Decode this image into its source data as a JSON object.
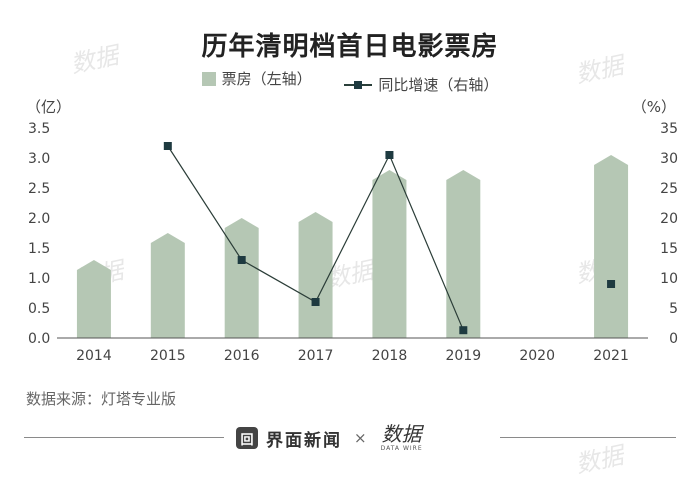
{
  "title": "历年清明档首日电影票房",
  "legend": {
    "bar_label": "票房（左轴）",
    "line_label": "同比增速（右轴）"
  },
  "axis": {
    "left_unit": "（亿）",
    "right_unit": "（%）"
  },
  "source": "数据来源：灯塔专业版",
  "footer": {
    "brand_mark": "回",
    "brand_name": "界面新闻",
    "cross": "×",
    "partner_cn": "数据",
    "partner_en": "DATA WIRE"
  },
  "watermark": "数据",
  "colors": {
    "bar": "#b5c7b4",
    "line": "#2b3d38",
    "marker": "#1e3a40",
    "axis": "#555555"
  },
  "chart_data": {
    "type": "bar",
    "categories": [
      "2014",
      "2015",
      "2016",
      "2017",
      "2018",
      "2019",
      "2020",
      "2021"
    ],
    "series": [
      {
        "name": "票房（左轴）",
        "type": "bar",
        "axis": "left",
        "values": [
          1.3,
          1.75,
          2.0,
          2.1,
          2.8,
          2.8,
          null,
          3.05
        ]
      },
      {
        "name": "同比增速（右轴）",
        "type": "line",
        "axis": "right",
        "values": [
          null,
          32,
          13,
          6,
          30.5,
          1.3,
          null,
          9
        ]
      }
    ],
    "left_axis": {
      "min": 0,
      "max": 3.5,
      "ticks": [
        "0.0",
        "0.5",
        "1.0",
        "1.5",
        "2.0",
        "2.5",
        "3.0",
        "3.5"
      ]
    },
    "right_axis": {
      "min": 0,
      "max": 35,
      "ticks": [
        "0",
        "5",
        "10",
        "15",
        "20",
        "25",
        "30",
        "35"
      ]
    },
    "grid": false,
    "legend_position": "top-center"
  }
}
